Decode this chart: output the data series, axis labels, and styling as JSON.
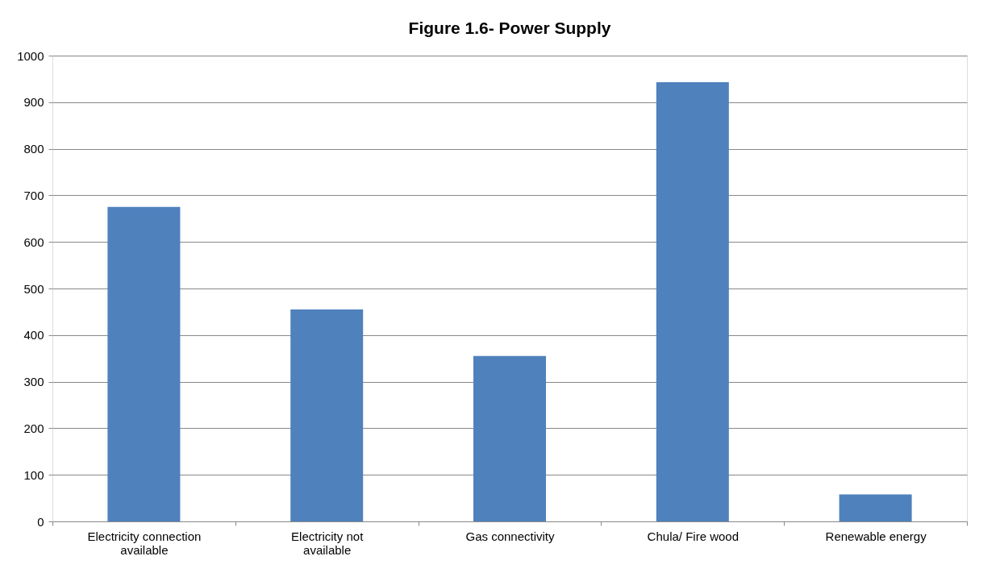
{
  "chart_data": {
    "type": "bar",
    "title": "Figure 1.6- Power Supply",
    "categories": [
      "Electricity connection available",
      "Electricity not available",
      "Gas connectivity",
      "Chula/ Fire wood",
      "Renewable energy"
    ],
    "values": [
      675,
      455,
      355,
      943,
      58
    ],
    "color": "#4f81bd",
    "ylim": [
      0,
      1000
    ],
    "yticks": [
      0,
      100,
      200,
      300,
      400,
      500,
      600,
      700,
      800,
      900,
      1000
    ],
    "grid": "y"
  }
}
